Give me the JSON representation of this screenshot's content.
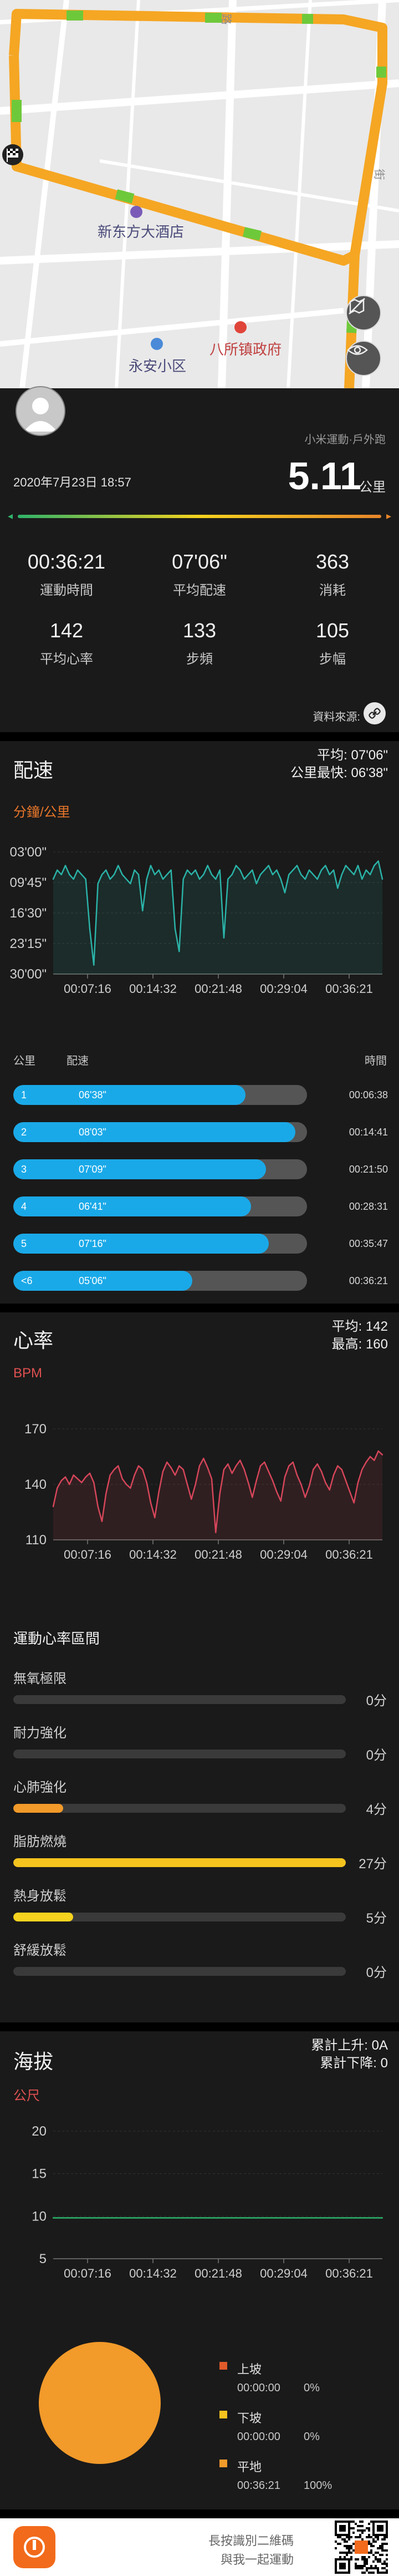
{
  "map": {
    "road_labels": [
      "路",
      "街"
    ],
    "poi_hotel": "新东方大酒店",
    "poi_community": "永安小区",
    "poi_government": "八所镇政府"
  },
  "summary": {
    "source_app": "小米運動·戶外跑",
    "date_time": "2020年7月23日 18:57",
    "distance": "5.11",
    "distance_unit": "公里",
    "stats": [
      {
        "value": "00:36:21",
        "label": "運動時間"
      },
      {
        "value": "07'06\"",
        "label": "平均配速"
      },
      {
        "value": "363",
        "label": "消耗"
      },
      {
        "value": "142",
        "label": "平均心率"
      },
      {
        "value": "133",
        "label": "步頻"
      },
      {
        "value": "105",
        "label": "步幅"
      }
    ],
    "data_source_label": "資料來源:",
    "colors": {
      "slow": "#2fb36a",
      "fast": "#e8862a"
    }
  },
  "pace": {
    "title": "配速",
    "avg_text": "平均: 07'06\"",
    "best_text": "公里最快: 06'38\"",
    "unit": "分鐘/公里",
    "split_headers": {
      "km": "公里",
      "pace": "配速",
      "time": "時間"
    },
    "splits": [
      {
        "idx": "1",
        "pace": "06'38\"",
        "time": "00:06:38",
        "fraction": 0.79
      },
      {
        "idx": "2",
        "pace": "08'03\"",
        "time": "00:14:41",
        "fraction": 0.96
      },
      {
        "idx": "3",
        "pace": "07'09\"",
        "time": "00:21:50",
        "fraction": 0.86
      },
      {
        "idx": "4",
        "pace": "06'41\"",
        "time": "00:28:31",
        "fraction": 0.81
      },
      {
        "idx": "5",
        "pace": "07'16\"",
        "time": "00:35:47",
        "fraction": 0.87
      },
      {
        "idx": "<6",
        "pace": "05'06\"",
        "time": "00:36:21",
        "fraction": 0.61
      }
    ]
  },
  "heart": {
    "title": "心率",
    "avg_text": "平均: 142",
    "max_text": "最高: 160",
    "unit": "BPM",
    "zones_title": "運動心率區間",
    "zones": [
      {
        "label": "無氧極限",
        "value": "0分",
        "fraction": 0,
        "color": "#e0453a"
      },
      {
        "label": "耐力強化",
        "value": "0分",
        "fraction": 0,
        "color": "#f08a2a"
      },
      {
        "label": "心肺強化",
        "value": "4分",
        "fraction": 0.15,
        "color": "#f29a2a"
      },
      {
        "label": "脂肪燃燒",
        "value": "27分",
        "fraction": 1.0,
        "color": "#f5c31e"
      },
      {
        "label": "熱身放鬆",
        "value": "5分",
        "fraction": 0.18,
        "color": "#f5d31e"
      },
      {
        "label": "舒緩放鬆",
        "value": "0分",
        "fraction": 0,
        "color": "#8bc34a"
      }
    ]
  },
  "altitude": {
    "title": "海拔",
    "ascent_text": "累計上升: 0A",
    "descent_text": "累計下降: 0",
    "unit": "公尺",
    "legend": [
      {
        "name": "上坡",
        "time": "00:00:00",
        "pct": "0%",
        "color": "#e05a2a"
      },
      {
        "name": "下坡",
        "time": "00:00:00",
        "pct": "0%",
        "color": "#f5c31e"
      },
      {
        "name": "平地",
        "time": "00:36:21",
        "pct": "100%",
        "color": "#f29a2a"
      }
    ]
  },
  "footer": {
    "line1": "長按識別二維碼",
    "line2": "與我一起運動"
  },
  "chart_data": [
    {
      "type": "area",
      "title": "配速",
      "ylabel": "分鐘/公里",
      "yticks": [
        "03'00\"",
        "09'45\"",
        "16'30\"",
        "23'15\"",
        "30'00\""
      ],
      "xticks": [
        "00:07:16",
        "00:14:32",
        "00:21:48",
        "00:29:04",
        "00:36:21"
      ],
      "ylim_minutes": [
        3,
        30
      ],
      "y_inverted": true,
      "series": [
        {
          "values": [
            9,
            7,
            8,
            6,
            8,
            9,
            7,
            8,
            9,
            20,
            28,
            10,
            8,
            7,
            9,
            8,
            6,
            8,
            9,
            10,
            7,
            8,
            16,
            9,
            6,
            8,
            7,
            9,
            8,
            7,
            20,
            25,
            9,
            7,
            8,
            7,
            9,
            8,
            6,
            8,
            9,
            7,
            22,
            9,
            8,
            6,
            7,
            9,
            8,
            7,
            10,
            8,
            7,
            6,
            8,
            7,
            9,
            12,
            8,
            7,
            6,
            8,
            9,
            7,
            8,
            9,
            7,
            6,
            8,
            7,
            11,
            8,
            6,
            7,
            8,
            6,
            9,
            7,
            8,
            6,
            5,
            9
          ]
        }
      ],
      "color": "#2bb3a8"
    },
    {
      "type": "area",
      "title": "心率",
      "ylabel": "BPM",
      "yticks": [
        170,
        140,
        110
      ],
      "xticks": [
        "00:07:16",
        "00:14:32",
        "00:21:48",
        "00:29:04",
        "00:36:21"
      ],
      "ylim": [
        110,
        170
      ],
      "series": [
        {
          "values": [
            128,
            138,
            142,
            144,
            140,
            145,
            143,
            141,
            144,
            146,
            141,
            128,
            120,
            135,
            145,
            148,
            150,
            143,
            140,
            138,
            145,
            150,
            148,
            141,
            130,
            122,
            136,
            147,
            152,
            149,
            145,
            150,
            148,
            140,
            132,
            140,
            150,
            154,
            149,
            143,
            114,
            135,
            148,
            151,
            146,
            150,
            153,
            148,
            141,
            133,
            142,
            150,
            152,
            147,
            142,
            136,
            131,
            144,
            150,
            152,
            145,
            140,
            133,
            139,
            148,
            151,
            147,
            141,
            137,
            145,
            150,
            148,
            142,
            136,
            130,
            141,
            148,
            152,
            155,
            153,
            158,
            156
          ]
        }
      ],
      "color": "#d6465a"
    },
    {
      "type": "line",
      "title": "海拔",
      "ylabel": "公尺",
      "yticks": [
        20,
        15,
        10,
        5
      ],
      "xticks": [
        "00:07:16",
        "00:14:32",
        "00:21:48",
        "00:29:04",
        "00:36:21"
      ],
      "ylim": [
        5,
        20
      ],
      "series": [
        {
          "values": [
            9.8,
            9.8,
            9.8,
            9.8,
            9.8
          ]
        }
      ],
      "color": "#2bb36a"
    },
    {
      "type": "pie",
      "title": "海拔",
      "categories": [
        "上坡",
        "下坡",
        "平地"
      ],
      "values": [
        0,
        0,
        100
      ]
    }
  ]
}
